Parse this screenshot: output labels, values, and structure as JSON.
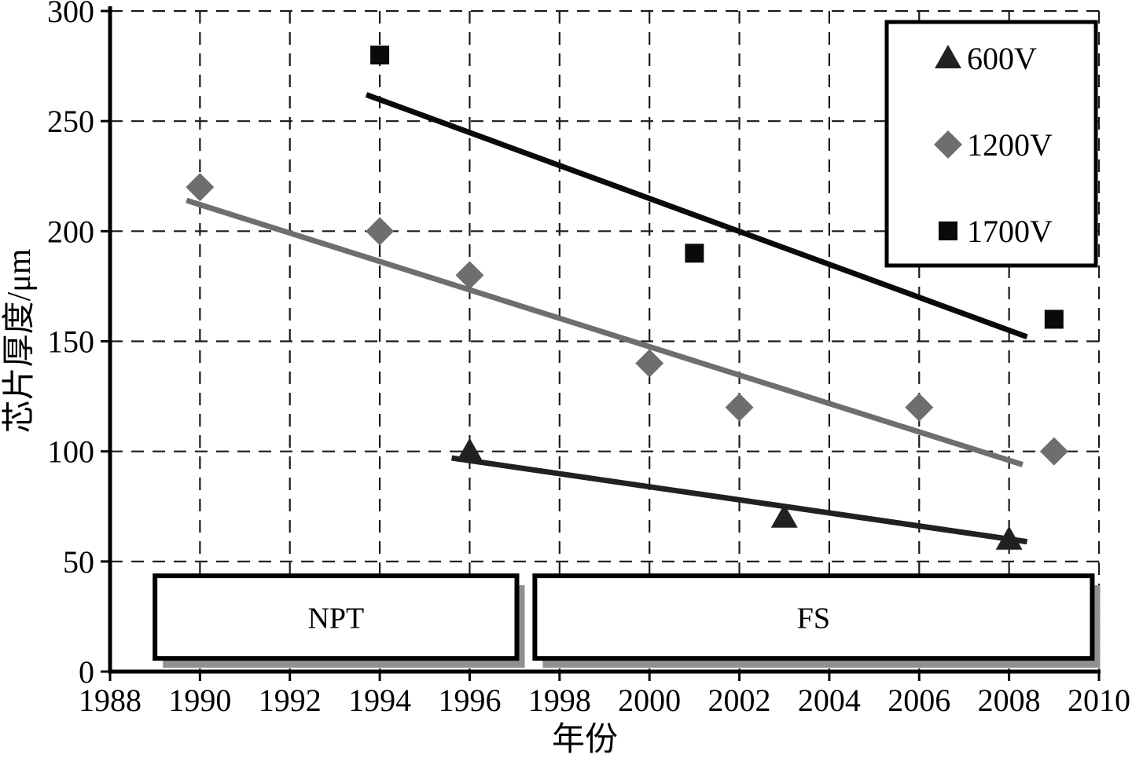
{
  "chart_data": {
    "type": "scatter",
    "title": "",
    "xlabel": "年份",
    "ylabel": "芯片厚度/μm",
    "xlim": [
      1988,
      2010
    ],
    "ylim": [
      0,
      300
    ],
    "xticks": [
      1988,
      1990,
      1992,
      1994,
      1996,
      1998,
      2000,
      2002,
      2004,
      2006,
      2008,
      2010
    ],
    "yticks": [
      0,
      50,
      100,
      150,
      200,
      250,
      300
    ],
    "grid": "dashed",
    "legend_position": "top-right",
    "series": [
      {
        "name": "600V",
        "marker": "triangle",
        "color": "#212121",
        "points": [
          [
            1996,
            100
          ],
          [
            2003,
            70
          ],
          [
            2008,
            60
          ]
        ],
        "trendline": [
          [
            1995.6,
            97
          ],
          [
            2008.4,
            59
          ]
        ]
      },
      {
        "name": "1200V",
        "marker": "diamond",
        "color": "#6e6e6e",
        "points": [
          [
            1990,
            220
          ],
          [
            1994,
            200
          ],
          [
            1996,
            180
          ],
          [
            2000,
            140
          ],
          [
            2002,
            120
          ],
          [
            2006,
            120
          ],
          [
            2009,
            100
          ]
        ],
        "trendline": [
          [
            1989.7,
            214
          ],
          [
            2008.3,
            94
          ]
        ]
      },
      {
        "name": "1700V",
        "marker": "square",
        "color": "#0a0a0a",
        "points": [
          [
            1994,
            280
          ],
          [
            2001,
            190
          ],
          [
            2009,
            160
          ]
        ],
        "trendline": [
          [
            1993.7,
            262
          ],
          [
            2008.4,
            152
          ]
        ]
      }
    ],
    "annotations": [
      {
        "label": "NPT",
        "x_range": [
          1989.0,
          1997.05
        ],
        "y_range": [
          6,
          43.5
        ]
      },
      {
        "label": "FS",
        "x_range": [
          1997.45,
          2009.85
        ],
        "y_range": [
          6,
          43.5
        ]
      }
    ],
    "shadow_color": "#909090",
    "grid_color": "#1a1a1a"
  }
}
